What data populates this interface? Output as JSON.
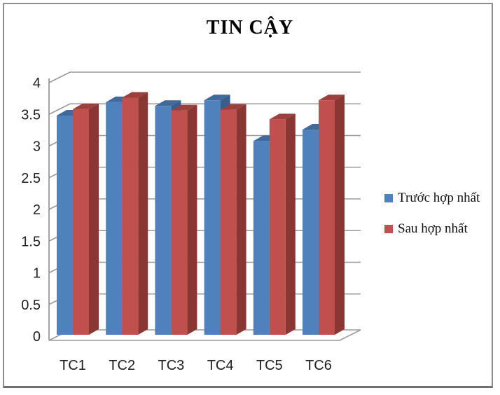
{
  "chart_data": {
    "type": "bar",
    "variant": "3d-clustered-column",
    "title": "TIN CẬY",
    "categories": [
      "TC1",
      "TC2",
      "TC3",
      "TC4",
      "TC5",
      "TC6"
    ],
    "series": [
      {
        "name": "Trước hợp nhất",
        "color": "#4f81bd",
        "color_top": "#40699c",
        "color_side": "#365f91",
        "values": [
          3.44,
          3.65,
          3.59,
          3.68,
          3.04,
          3.22
        ]
      },
      {
        "name": "Sau hợp nhất",
        "color": "#c0504d",
        "color_top": "#9c3f3d",
        "color_side": "#8a3734",
        "values": [
          3.54,
          3.72,
          3.52,
          3.53,
          3.38,
          3.68
        ]
      }
    ],
    "y_axis": {
      "min": 0,
      "max": 4,
      "step": 0.5,
      "tick_labels": [
        "0",
        "0.5",
        "1",
        "1.5",
        "2",
        "2.5",
        "3",
        "3.5",
        "4"
      ]
    },
    "x_axis": {
      "tick_labels": [
        "TC1",
        "TC2",
        "TC3",
        "TC4",
        "TC5",
        "TC6"
      ]
    },
    "legend_position": "right",
    "grid": true,
    "grid_color": "#9a9a9a",
    "text_color": "#1f1f1f"
  }
}
